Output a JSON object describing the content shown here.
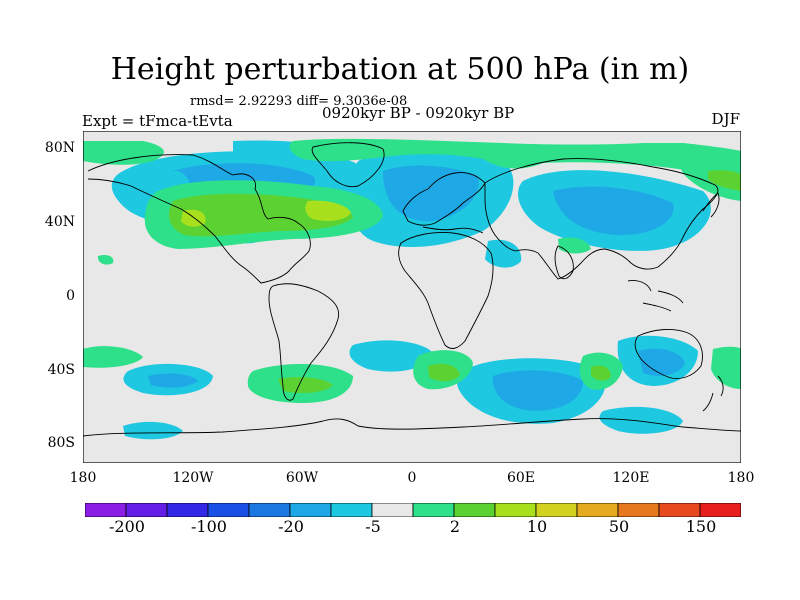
{
  "title": "Height perturbation at 500 hPa (in m)",
  "stats": "rmsd= 2.92293  diff= 9.3036e-08",
  "experiment": "Expt = tFmca-tEvta",
  "period": "0920kyr BP - 0920kyr BP",
  "season": "DJF",
  "colors": {
    "neutral": "#e8e8e8",
    "neg_light": "#1ec8e0",
    "neg_mid": "#1ea8e6",
    "neg_dark": "#1a78e0",
    "pos_light": "#2ee08a",
    "pos_mid": "#5cd232",
    "pos_yellow": "#a8e01e",
    "coast": "#000000"
  },
  "axes": {
    "lat_labels": [
      "80N",
      "40N",
      "0",
      "40S",
      "80S"
    ],
    "lon_labels": [
      "180",
      "120W",
      "60W",
      "0",
      "60E",
      "120E",
      "180"
    ]
  },
  "colorbar": {
    "colors": [
      "#8c1ee6",
      "#641ee6",
      "#3228e6",
      "#1a50e6",
      "#1a78e0",
      "#1ea8e6",
      "#1ec8e0",
      "#e8e8e8",
      "#2ee08a",
      "#5cd232",
      "#a8e01e",
      "#d2d21e",
      "#e6aa1e",
      "#e6781e",
      "#e64a1e",
      "#e61e1e"
    ],
    "labels": [
      "-200",
      "-100",
      "-20",
      "-5",
      "2",
      "10",
      "50",
      "150"
    ]
  }
}
